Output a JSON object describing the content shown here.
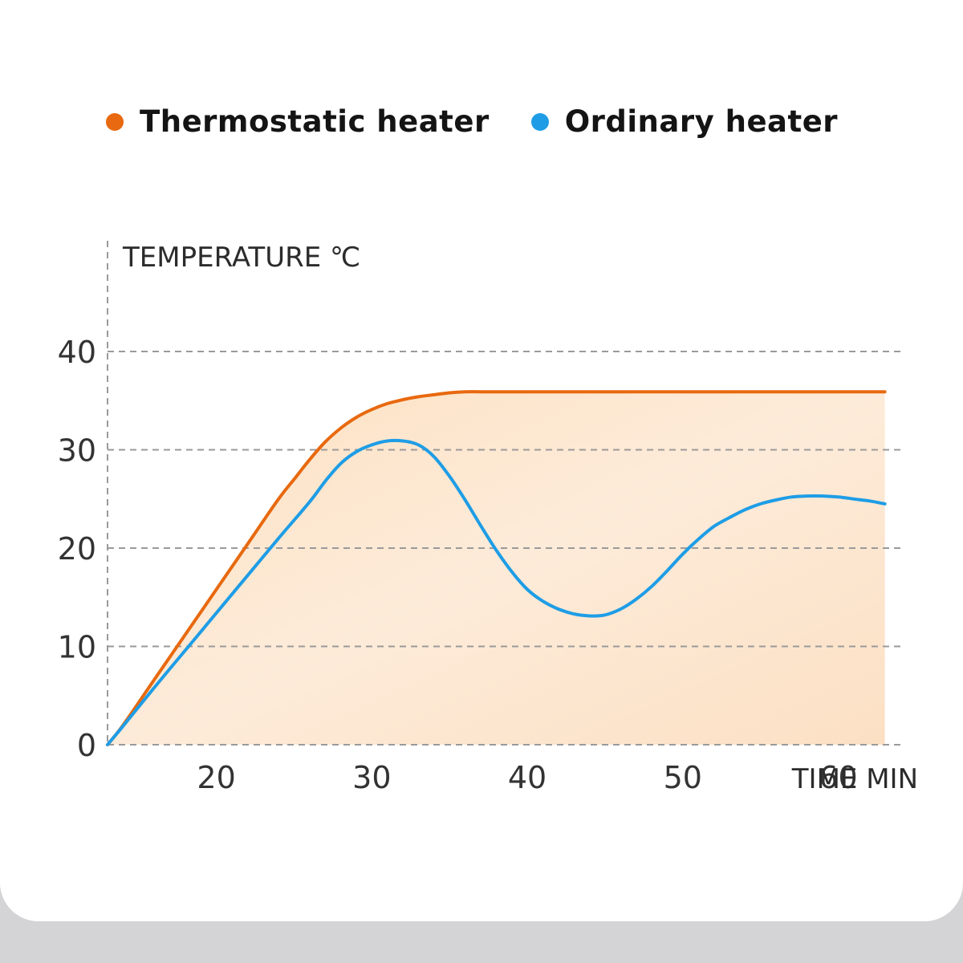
{
  "legend": [
    {
      "label": "Thermostatic heater",
      "color": "#e8690f"
    },
    {
      "label": "Ordinary heater",
      "color": "#1e9de6"
    }
  ],
  "chart_data": {
    "type": "line",
    "ylabel": "TEMPERATURE ℃",
    "xlabel": "TIME MIN",
    "ylim": [
      0,
      40
    ],
    "xlim": [
      13,
      64
    ],
    "yticks": [
      "0",
      "10",
      "20",
      "30",
      "40"
    ],
    "xticks": [
      "20",
      "30",
      "40",
      "50",
      "60"
    ],
    "grid": true,
    "legend_position": "top",
    "fill_under": "Thermostatic heater",
    "series": [
      {
        "name": "Thermostatic heater",
        "color": "#e8690f",
        "x": [
          13,
          14,
          16,
          18,
          20,
          22,
          24,
          25,
          26,
          27,
          28,
          29,
          30,
          31,
          32,
          33,
          34,
          35,
          36,
          37,
          38,
          40,
          45,
          50,
          55,
          60,
          63
        ],
        "y": [
          0,
          2,
          6.6,
          11.2,
          15.8,
          20.4,
          25,
          27,
          29,
          30.8,
          32.2,
          33.3,
          34.1,
          34.7,
          35.1,
          35.4,
          35.6,
          35.8,
          35.9,
          35.9,
          35.9,
          35.9,
          35.9,
          35.9,
          35.9,
          35.9,
          35.9
        ]
      },
      {
        "name": "Ordinary heater",
        "color": "#1e9de6",
        "x": [
          13,
          14,
          16,
          18,
          20,
          22,
          24,
          26,
          27,
          28,
          29,
          30,
          31,
          32,
          33,
          34,
          35,
          36,
          37,
          38,
          39,
          40,
          41,
          42,
          43,
          44,
          45,
          46,
          47,
          48,
          49,
          50,
          51,
          52,
          53,
          54,
          55,
          56,
          57,
          58,
          59,
          60,
          61,
          62,
          63
        ],
        "y": [
          0,
          1.9,
          5.8,
          9.6,
          13.4,
          17.2,
          21,
          24.7,
          26.8,
          28.6,
          29.8,
          30.5,
          30.9,
          30.9,
          30.5,
          29.3,
          27.3,
          24.9,
          22.3,
          19.8,
          17.6,
          15.8,
          14.6,
          13.8,
          13.3,
          13.1,
          13.2,
          13.8,
          14.8,
          16.1,
          17.7,
          19.4,
          20.9,
          22.2,
          23.1,
          23.9,
          24.5,
          24.9,
          25.2,
          25.3,
          25.3,
          25.2,
          25.0,
          24.8,
          24.5
        ]
      }
    ]
  }
}
